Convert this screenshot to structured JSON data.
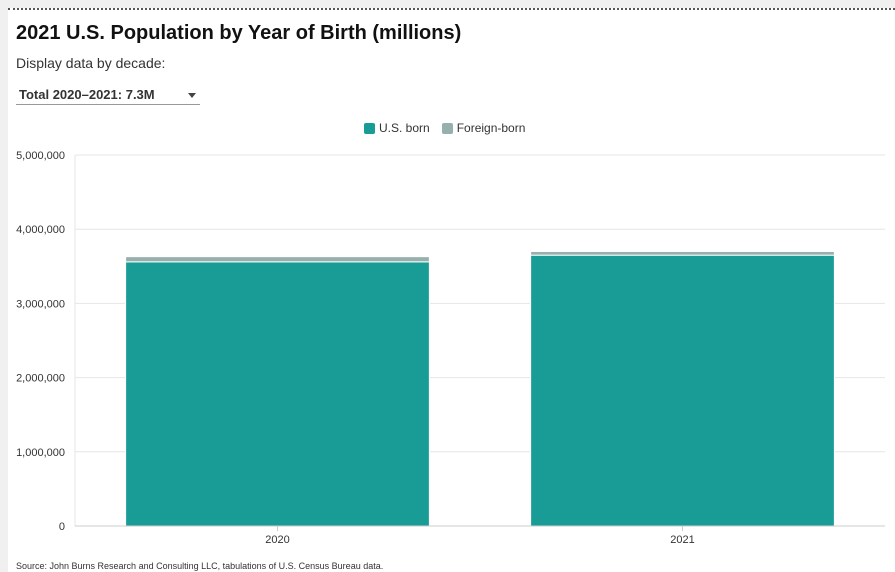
{
  "title": "2021 U.S. Population by Year of Birth (millions)",
  "subtitle": "Display data by decade:",
  "dropdown": {
    "selected": "Total 2020–2021: 7.3M"
  },
  "source": "Source: John Burns Research and Consulting LLC, tabulations of U.S. Census Bureau data.",
  "colors": {
    "us_born": "#1a9c96",
    "foreign_born": "#96b0ad"
  },
  "chart_data": {
    "type": "bar",
    "stacked": true,
    "title": "2021 U.S. Population by Year of Birth (millions)",
    "categories": [
      "2020",
      "2021"
    ],
    "series": [
      {
        "name": "U.S. born",
        "values": [
          3560000,
          3650000
        ]
      },
      {
        "name": "Foreign-born",
        "values": [
          70000,
          50000
        ]
      }
    ],
    "ylim": [
      0,
      5000000
    ],
    "yticks": [
      0,
      1000000,
      2000000,
      3000000,
      4000000,
      5000000
    ],
    "ytick_labels": [
      "0",
      "1,000,000",
      "2,000,000",
      "3,000,000",
      "4,000,000",
      "5,000,000"
    ],
    "legend": "top-center",
    "grid": true
  }
}
